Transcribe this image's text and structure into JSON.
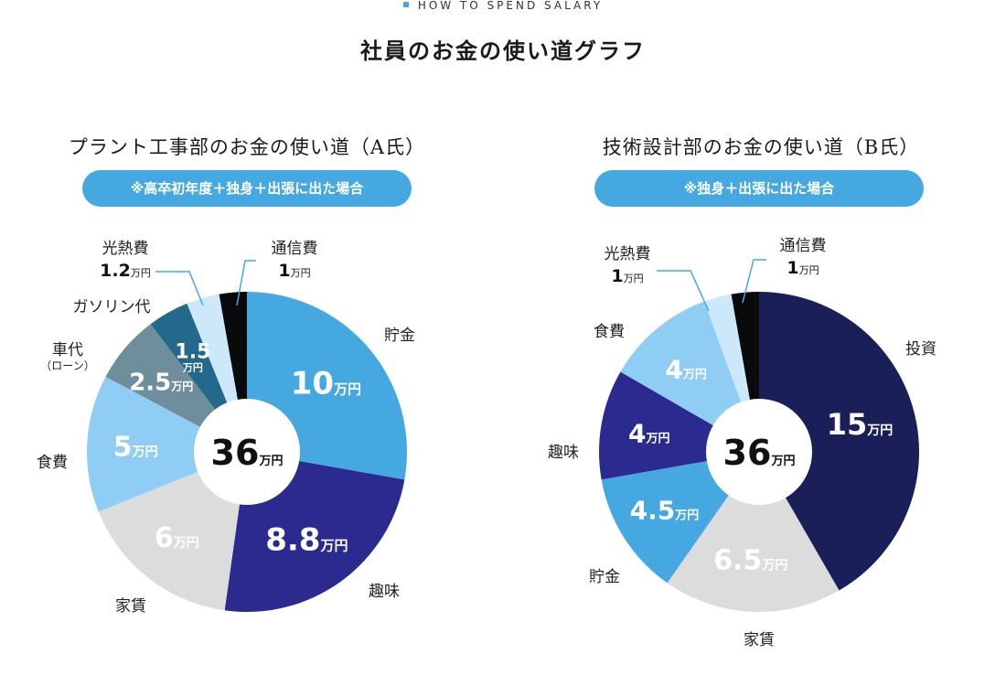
{
  "header": {
    "eyebrow": "HOW TO SPEND SALARY",
    "title": "社員のお金の使い道グラフ"
  },
  "colors": {
    "accent": "#46a8e0",
    "light_blue": "#8fcdf5",
    "pale_blue": "#cde8f8",
    "navy": "#2b2b8f",
    "dark_navy": "#1a1f5a",
    "grey": "#dcdcdc",
    "grey_blue": "#6f8e9c",
    "teal": "#24698b",
    "black": "#0a0a0a"
  },
  "chart_data": [
    {
      "type": "pie",
      "title": "プラント工事部のお金の使い道（A氏）",
      "note": "※高卒初年度＋独身＋出張に出た場合",
      "total_label": "36",
      "total_unit": "万円",
      "unit": "万円",
      "slices": [
        {
          "label": "貯金",
          "value": 10,
          "value_label": "10",
          "color": "#46a8e0"
        },
        {
          "label": "趣味",
          "value": 8.8,
          "value_label": "8.8",
          "color": "#2b2b8f"
        },
        {
          "label": "家賃",
          "value": 6,
          "value_label": "6",
          "color": "#dcdcdc"
        },
        {
          "label": "食費",
          "value": 5,
          "value_label": "5",
          "color": "#8fcdf5"
        },
        {
          "label": "車代",
          "label_sub": "（ローン）",
          "value": 2.5,
          "value_label": "2.5",
          "color": "#6f8e9c"
        },
        {
          "label": "ガソリン代",
          "value": 1.5,
          "value_label": "1.5",
          "color": "#24698b"
        },
        {
          "label": "光熱費",
          "value": 1.2,
          "value_label": "1.2",
          "color": "#cde8f8"
        },
        {
          "label": "通信費",
          "value": 1,
          "value_label": "1",
          "color": "#0a0a0a"
        }
      ]
    },
    {
      "type": "pie",
      "title": "技術設計部のお金の使い道（B氏）",
      "note": "※独身＋出張に出た場合",
      "total_label": "36",
      "total_unit": "万円",
      "unit": "万円",
      "slices": [
        {
          "label": "投資",
          "value": 15,
          "value_label": "15",
          "color": "#1a1f5a"
        },
        {
          "label": "家賃",
          "value": 6.5,
          "value_label": "6.5",
          "color": "#dcdcdc"
        },
        {
          "label": "貯金",
          "value": 4.5,
          "value_label": "4.5",
          "color": "#46a8e0"
        },
        {
          "label": "趣味",
          "value": 4,
          "value_label": "4",
          "color": "#2b2b8f"
        },
        {
          "label": "食費",
          "value": 4,
          "value_label": "4",
          "color": "#8fcdf5"
        },
        {
          "label": "光熱費",
          "value": 1,
          "value_label": "1",
          "color": "#cde8f8"
        },
        {
          "label": "通信費",
          "value": 1,
          "value_label": "1",
          "color": "#0a0a0a"
        }
      ]
    }
  ]
}
